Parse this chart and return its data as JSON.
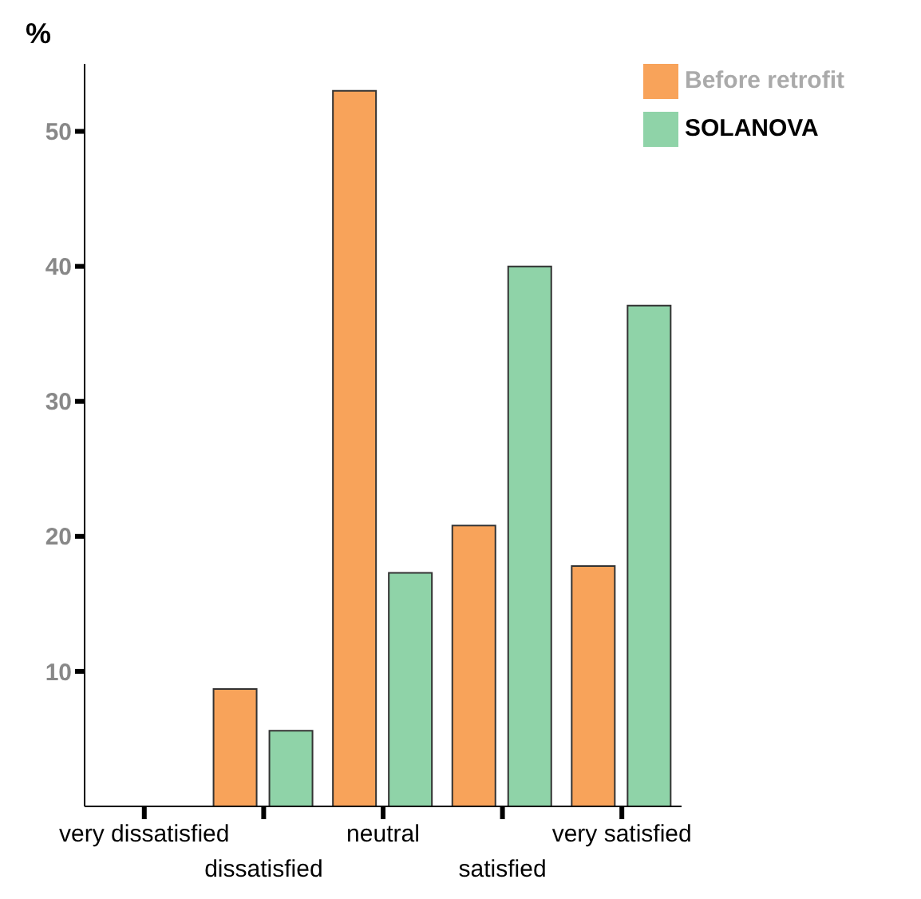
{
  "chart_data": {
    "type": "bar",
    "ylabel": "%",
    "categories": [
      "very dissatisfied",
      "dissatisfied",
      "neutral",
      "satisfied",
      "very satisfied"
    ],
    "series": [
      {
        "name": "Before retrofit",
        "color": "#f8a35a",
        "values": [
          0,
          8.7,
          53,
          20.8,
          17.8
        ]
      },
      {
        "name": "SOLANOVA",
        "color": "#8fd3a8",
        "values": [
          0,
          5.6,
          17.3,
          40,
          37.1
        ]
      }
    ],
    "ylim": [
      0,
      55
    ],
    "yticks": [
      10,
      20,
      30,
      40,
      50
    ],
    "grid": false,
    "legend": "top right"
  }
}
